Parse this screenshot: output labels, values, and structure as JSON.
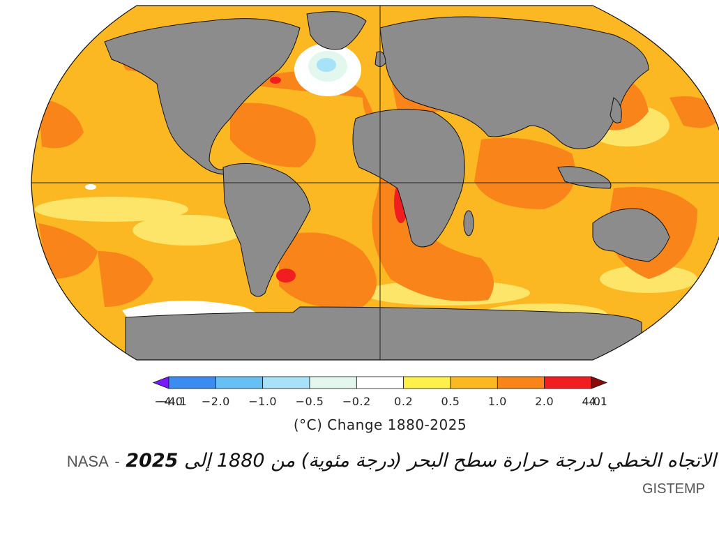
{
  "map": {
    "projection": "robinson",
    "land_color": "#8c8c8c",
    "base_ocean_color": "#fcb822",
    "graticule": [
      "equator",
      "prime-meridian"
    ]
  },
  "colorbar": {
    "colors": [
      "#7a19ff",
      "#3a8cf0",
      "#66c0f5",
      "#a8e2f8",
      "#e2f7ee",
      "#ffffff",
      "#fff04a",
      "#fcb822",
      "#f9851a",
      "#f01e1e",
      "#8a0a0a"
    ],
    "tick_labels": [
      "−4.1",
      "−4.0",
      "−2.0",
      "−1.0",
      "−0.5",
      "−0.2",
      "0.2",
      "0.5",
      "1.0",
      "2.0",
      "4.0",
      "4.1"
    ],
    "title": "(°C) Change 1880-2025"
  },
  "caption": {
    "text": "الاتجاه الخطي لدرجة حرارة سطح البحر (درجة مئوية) من 1880 إلى",
    "year": "2025",
    "separator": "-",
    "source": "NASA",
    "dataset": "GISTEMP"
  }
}
